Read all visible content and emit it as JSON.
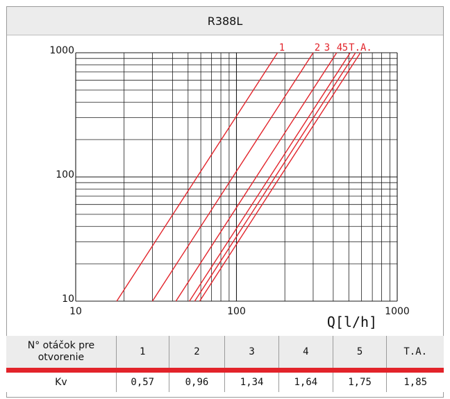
{
  "title": "R388L",
  "colors": {
    "grid": "#1a1a1a",
    "curve": "#e2232a",
    "header_bg": "#ececec",
    "accent": "#e2232a"
  },
  "chart_data": {
    "type": "line",
    "title": "R388L",
    "xlabel": "Q[l/h]",
    "ylabel": "",
    "x_scale": "log",
    "y_scale": "log",
    "xlim": [
      10,
      1000
    ],
    "ylim": [
      10,
      1000
    ],
    "x_ticks": [
      "10",
      "100",
      "1000"
    ],
    "y_ticks": [
      "10",
      "100",
      "1000"
    ],
    "grid": true,
    "series": [
      {
        "name": "1",
        "x": [
          18,
          180
        ],
        "y": [
          10,
          1000
        ]
      },
      {
        "name": "2",
        "x": [
          30,
          300
        ],
        "y": [
          10,
          1000
        ]
      },
      {
        "name": "3",
        "x": [
          42,
          420
        ],
        "y": [
          10,
          1000
        ]
      },
      {
        "name": "4",
        "x": [
          51,
          510
        ],
        "y": [
          10,
          1000
        ]
      },
      {
        "name": "5",
        "x": [
          55,
          550
        ],
        "y": [
          10,
          1000
        ]
      },
      {
        "name": "T.A.",
        "x": [
          59,
          590
        ],
        "y": [
          10,
          1000
        ]
      }
    ]
  },
  "table": {
    "header_label": "N° otáčok pre otvorenie",
    "columns": [
      "1",
      "2",
      "3",
      "4",
      "5",
      "T.A."
    ],
    "row_label": "Kv",
    "values": [
      "0,57",
      "0,96",
      "1,34",
      "1,64",
      "1,75",
      "1,85"
    ]
  }
}
